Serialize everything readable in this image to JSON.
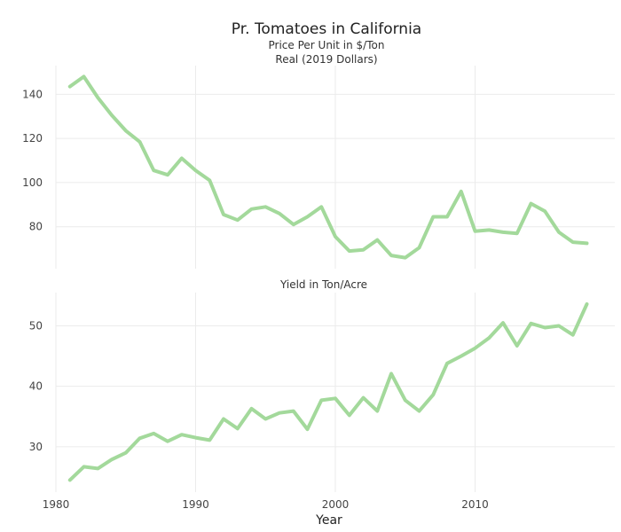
{
  "title": "Pr. Tomatoes in California",
  "subtitle_line1": "Price Per Unit in $/Ton",
  "subtitle_line2": "Real (2019 Dollars)",
  "xlabel": "Year",
  "line_color": "#a3d99b",
  "chart_data": [
    {
      "type": "line",
      "panel": "top",
      "title": "",
      "xlabel": "",
      "ylabel": "",
      "xlim": [
        1980,
        2020
      ],
      "ylim": [
        61,
        153
      ],
      "yticks": [
        80,
        100,
        120,
        140
      ],
      "x": [
        1981,
        1982,
        1983,
        1984,
        1985,
        1986,
        1987,
        1988,
        1989,
        1990,
        1991,
        1992,
        1993,
        1994,
        1995,
        1996,
        1997,
        1998,
        1999,
        2000,
        2001,
        2002,
        2003,
        2004,
        2005,
        2006,
        2007,
        2008,
        2009,
        2010,
        2011,
        2012,
        2013,
        2014,
        2015,
        2016,
        2017,
        2018
      ],
      "y": [
        143.5,
        148,
        138.5,
        130.5,
        123.5,
        118.5,
        105.5,
        103.5,
        111,
        105.5,
        101,
        85.5,
        83,
        88,
        89,
        86,
        81,
        84.5,
        89,
        75.5,
        69,
        69.5,
        74,
        67,
        66,
        70.5,
        84.5,
        84.5,
        96,
        78,
        78.5,
        77.5,
        77,
        90.5,
        87,
        77.5,
        73,
        72.5
      ]
    },
    {
      "type": "line",
      "panel": "bottom",
      "title": "Yield in Ton/Acre",
      "xlabel": "Year",
      "ylabel": "",
      "xlim": [
        1980,
        2020
      ],
      "ylim": [
        22.5,
        55.5
      ],
      "yticks": [
        30,
        40,
        50
      ],
      "xticks": [
        1980,
        1990,
        2000,
        2010
      ],
      "x": [
        1981,
        1982,
        1983,
        1984,
        1985,
        1986,
        1987,
        1988,
        1989,
        1990,
        1991,
        1992,
        1993,
        1994,
        1995,
        1996,
        1997,
        1998,
        1999,
        2000,
        2001,
        2002,
        2003,
        2004,
        2005,
        2006,
        2007,
        2008,
        2009,
        2010,
        2011,
        2012,
        2013,
        2014,
        2015,
        2016,
        2017,
        2018
      ],
      "y": [
        24.5,
        26.7,
        26.4,
        27.9,
        29,
        31.4,
        32.2,
        30.9,
        32,
        31.5,
        31.1,
        34.6,
        33,
        36.3,
        34.6,
        35.6,
        35.9,
        32.9,
        37.7,
        38,
        35.2,
        38.1,
        35.9,
        42.1,
        37.7,
        35.9,
        38.6,
        43.8,
        45,
        46.3,
        48,
        50.5,
        46.7,
        50.4,
        49.7,
        50,
        48.5,
        53.6
      ]
    }
  ]
}
